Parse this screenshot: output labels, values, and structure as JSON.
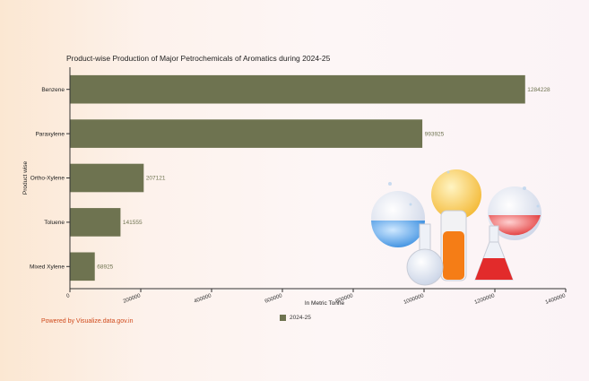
{
  "chart_data": {
    "type": "bar",
    "orientation": "horizontal",
    "title": "Product-wise Production of Major Petrochemicals of Aromatics during 2024-25",
    "xlabel": "In Metric Tonne",
    "ylabel": "Product wise",
    "categories": [
      "Benzene",
      "Paraxylene",
      "Ortho-Xylene",
      "Toluene",
      "Mixed Xylene"
    ],
    "series": [
      {
        "name": "2024-25",
        "values": [
          1284228,
          993925,
          207121,
          141555,
          68925
        ]
      }
    ],
    "xlim": [
      0,
      1400000
    ],
    "xticks": [
      0,
      200000,
      400000,
      600000,
      800000,
      1000000,
      1200000,
      1400000
    ],
    "xtick_labels": [
      "0",
      "200000",
      "400000",
      "600000",
      "800000",
      "1000000",
      "1200000",
      "1400000"
    ],
    "data_labels": [
      "1284228",
      "993925",
      "207121",
      "141555",
      "68925"
    ],
    "legend_position": "bottom",
    "grid": false,
    "bar_color": "#6e7350"
  },
  "footer": {
    "powered_by": "Powered by Visualize.data.gov.in"
  },
  "decoration": {
    "illustration": "chemistry-flasks-icon"
  }
}
